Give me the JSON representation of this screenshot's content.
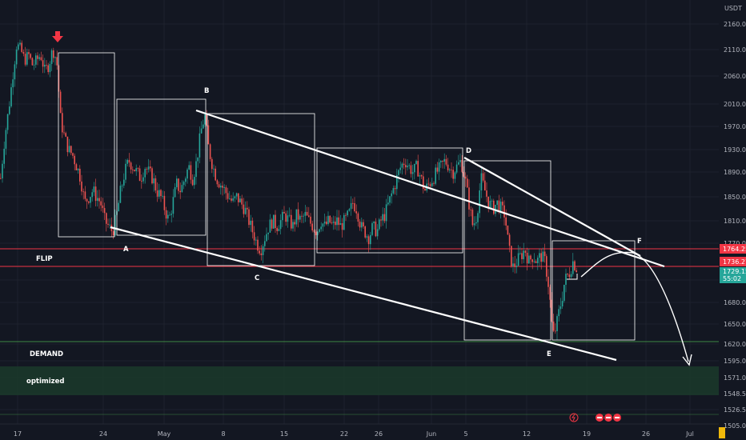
{
  "chart_data": {
    "type": "candlestick",
    "currency": "USDT",
    "y_ticks": [
      "2160.00",
      "2110.00",
      "2060.00",
      "2010.00",
      "1970.00",
      "1930.00",
      "1890.00",
      "1850.00",
      "1810.00",
      "1770.00",
      "1710.00",
      "1680.00",
      "1650.00",
      "1620.00",
      "1595.00",
      "1571.00",
      "1548.50",
      "1526.50",
      "1505.00"
    ],
    "x_ticks": [
      "17",
      "24",
      "May",
      "8",
      "15",
      "22",
      "26",
      "Jun",
      "5",
      "12",
      "19",
      "26",
      "Jul"
    ],
    "price_labels": [
      {
        "value": "1764.25",
        "color": "#f23645"
      },
      {
        "value": "1736.27",
        "color": "#f23645"
      },
      {
        "value": "1729.15",
        "color": "#26a69a",
        "sub": "55:02"
      }
    ],
    "annotations": [
      {
        "text": "A"
      },
      {
        "text": "B"
      },
      {
        "text": "C"
      },
      {
        "text": "D"
      },
      {
        "text": "E"
      },
      {
        "text": "F"
      },
      {
        "text": "FLIP"
      },
      {
        "text": "DEMAND"
      },
      {
        "text": "optimized"
      }
    ],
    "levels": {
      "flip_top": 1764.25,
      "flip_bottom": 1736.27,
      "demand_line": 1622,
      "demand_zone": [
        1550,
        1590
      ]
    },
    "close_path": [
      [
        0,
        1880
      ],
      [
        5,
        1950
      ],
      [
        10,
        2000
      ],
      [
        15,
        2060
      ],
      [
        20,
        2120
      ],
      [
        25,
        2110
      ],
      [
        30,
        2090
      ],
      [
        35,
        2100
      ],
      [
        40,
        2080
      ],
      [
        45,
        2090
      ],
      [
        50,
        2100
      ],
      [
        55,
        2070
      ],
      [
        60,
        2080
      ],
      [
        65,
        2110
      ],
      [
        70,
        2090
      ],
      [
        75,
        1980
      ],
      [
        80,
        1950
      ],
      [
        85,
        1930
      ],
      [
        90,
        1920
      ],
      [
        95,
        1900
      ],
      [
        100,
        1880
      ],
      [
        105,
        1840
      ],
      [
        110,
        1850
      ],
      [
        115,
        1860
      ],
      [
        120,
        1850
      ],
      [
        125,
        1840
      ],
      [
        130,
        1810
      ],
      [
        135,
        1800
      ],
      [
        140,
        1790
      ],
      [
        145,
        1820
      ],
      [
        150,
        1860
      ],
      [
        155,
        1890
      ],
      [
        160,
        1910
      ],
      [
        165,
        1900
      ],
      [
        170,
        1890
      ],
      [
        175,
        1880
      ],
      [
        180,
        1900
      ],
      [
        185,
        1890
      ],
      [
        190,
        1880
      ],
      [
        195,
        1860
      ],
      [
        200,
        1850
      ],
      [
        205,
        1830
      ],
      [
        210,
        1810
      ],
      [
        215,
        1840
      ],
      [
        220,
        1870
      ],
      [
        225,
        1860
      ],
      [
        230,
        1880
      ],
      [
        235,
        1900
      ],
      [
        240,
        1880
      ],
      [
        245,
        1910
      ],
      [
        250,
        1960
      ],
      [
        255,
        1990
      ],
      [
        260,
        1930
      ],
      [
        265,
        1900
      ],
      [
        270,
        1880
      ],
      [
        275,
        1870
      ],
      [
        280,
        1860
      ],
      [
        285,
        1850
      ],
      [
        290,
        1840
      ],
      [
        295,
        1850
      ],
      [
        300,
        1840
      ],
      [
        305,
        1830
      ],
      [
        310,
        1810
      ],
      [
        315,
        1790
      ],
      [
        320,
        1770
      ],
      [
        325,
        1760
      ],
      [
        330,
        1780
      ],
      [
        335,
        1800
      ],
      [
        340,
        1810
      ],
      [
        345,
        1800
      ],
      [
        350,
        1810
      ],
      [
        355,
        1820
      ],
      [
        360,
        1810
      ],
      [
        365,
        1800
      ],
      [
        370,
        1820
      ],
      [
        375,
        1810
      ],
      [
        380,
        1820
      ],
      [
        385,
        1810
      ],
      [
        390,
        1800
      ],
      [
        395,
        1790
      ],
      [
        400,
        1810
      ],
      [
        405,
        1800
      ],
      [
        410,
        1810
      ],
      [
        415,
        1800
      ],
      [
        420,
        1810
      ],
      [
        425,
        1800
      ],
      [
        430,
        1810
      ],
      [
        435,
        1820
      ],
      [
        440,
        1840
      ],
      [
        445,
        1830
      ],
      [
        450,
        1800
      ],
      [
        455,
        1790
      ],
      [
        460,
        1780
      ],
      [
        465,
        1800
      ],
      [
        470,
        1790
      ],
      [
        475,
        1810
      ],
      [
        480,
        1820
      ],
      [
        485,
        1840
      ],
      [
        490,
        1860
      ],
      [
        495,
        1880
      ],
      [
        500,
        1900
      ],
      [
        505,
        1910
      ],
      [
        510,
        1900
      ],
      [
        515,
        1890
      ],
      [
        520,
        1900
      ],
      [
        525,
        1880
      ],
      [
        530,
        1860
      ],
      [
        535,
        1870
      ],
      [
        540,
        1880
      ],
      [
        545,
        1890
      ],
      [
        550,
        1900
      ],
      [
        555,
        1910
      ],
      [
        560,
        1900
      ],
      [
        565,
        1890
      ],
      [
        570,
        1900
      ],
      [
        575,
        1910
      ],
      [
        580,
        1880
      ],
      [
        585,
        1840
      ],
      [
        590,
        1800
      ],
      [
        595,
        1820
      ],
      [
        600,
        1880
      ],
      [
        605,
        1860
      ],
      [
        610,
        1840
      ],
      [
        615,
        1830
      ],
      [
        620,
        1840
      ],
      [
        625,
        1830
      ],
      [
        630,
        1820
      ],
      [
        635,
        1760
      ],
      [
        640,
        1730
      ],
      [
        645,
        1740
      ],
      [
        650,
        1750
      ],
      [
        655,
        1760
      ],
      [
        660,
        1740
      ],
      [
        665,
        1750
      ],
      [
        670,
        1740
      ],
      [
        675,
        1750
      ],
      [
        680,
        1740
      ],
      [
        685,
        1700
      ],
      [
        690,
        1630
      ],
      [
        695,
        1650
      ],
      [
        700,
        1680
      ],
      [
        705,
        1710
      ],
      [
        710,
        1720
      ],
      [
        715,
        1740
      ],
      [
        720,
        1729
      ]
    ]
  }
}
